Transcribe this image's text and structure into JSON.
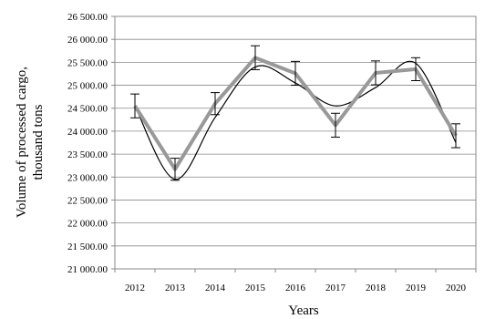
{
  "chart_data": {
    "type": "line",
    "xlabel": "Years",
    "ylabel_line1": "Volume of processed cargo,",
    "ylabel_line2": "thousand tons",
    "categories": [
      "2012",
      "2013",
      "2014",
      "2015",
      "2016",
      "2017",
      "2018",
      "2019",
      "2020"
    ],
    "y_ticks": [
      "21 000.00",
      "21 500.00",
      "22 000.00",
      "22 500.00",
      "23 000.00",
      "23 500.00",
      "24 000.00",
      "24 500.00",
      "25 000.00",
      "25 500.00",
      "26 000.00",
      "26 500.00"
    ],
    "ylim": [
      21000,
      26500
    ],
    "grid": true,
    "series": [
      {
        "values": [
          24550,
          23170,
          24600,
          25600,
          25260,
          24130,
          25270,
          25350,
          23900
        ],
        "error": [
          260,
          240,
          240,
          260,
          260,
          260,
          260,
          250,
          260
        ],
        "color": "#999999"
      }
    ],
    "trend": {
      "color": "#000000",
      "values": [
        24550,
        22950,
        24300,
        25400,
        25050,
        24550,
        24950,
        25480,
        23750
      ]
    }
  }
}
